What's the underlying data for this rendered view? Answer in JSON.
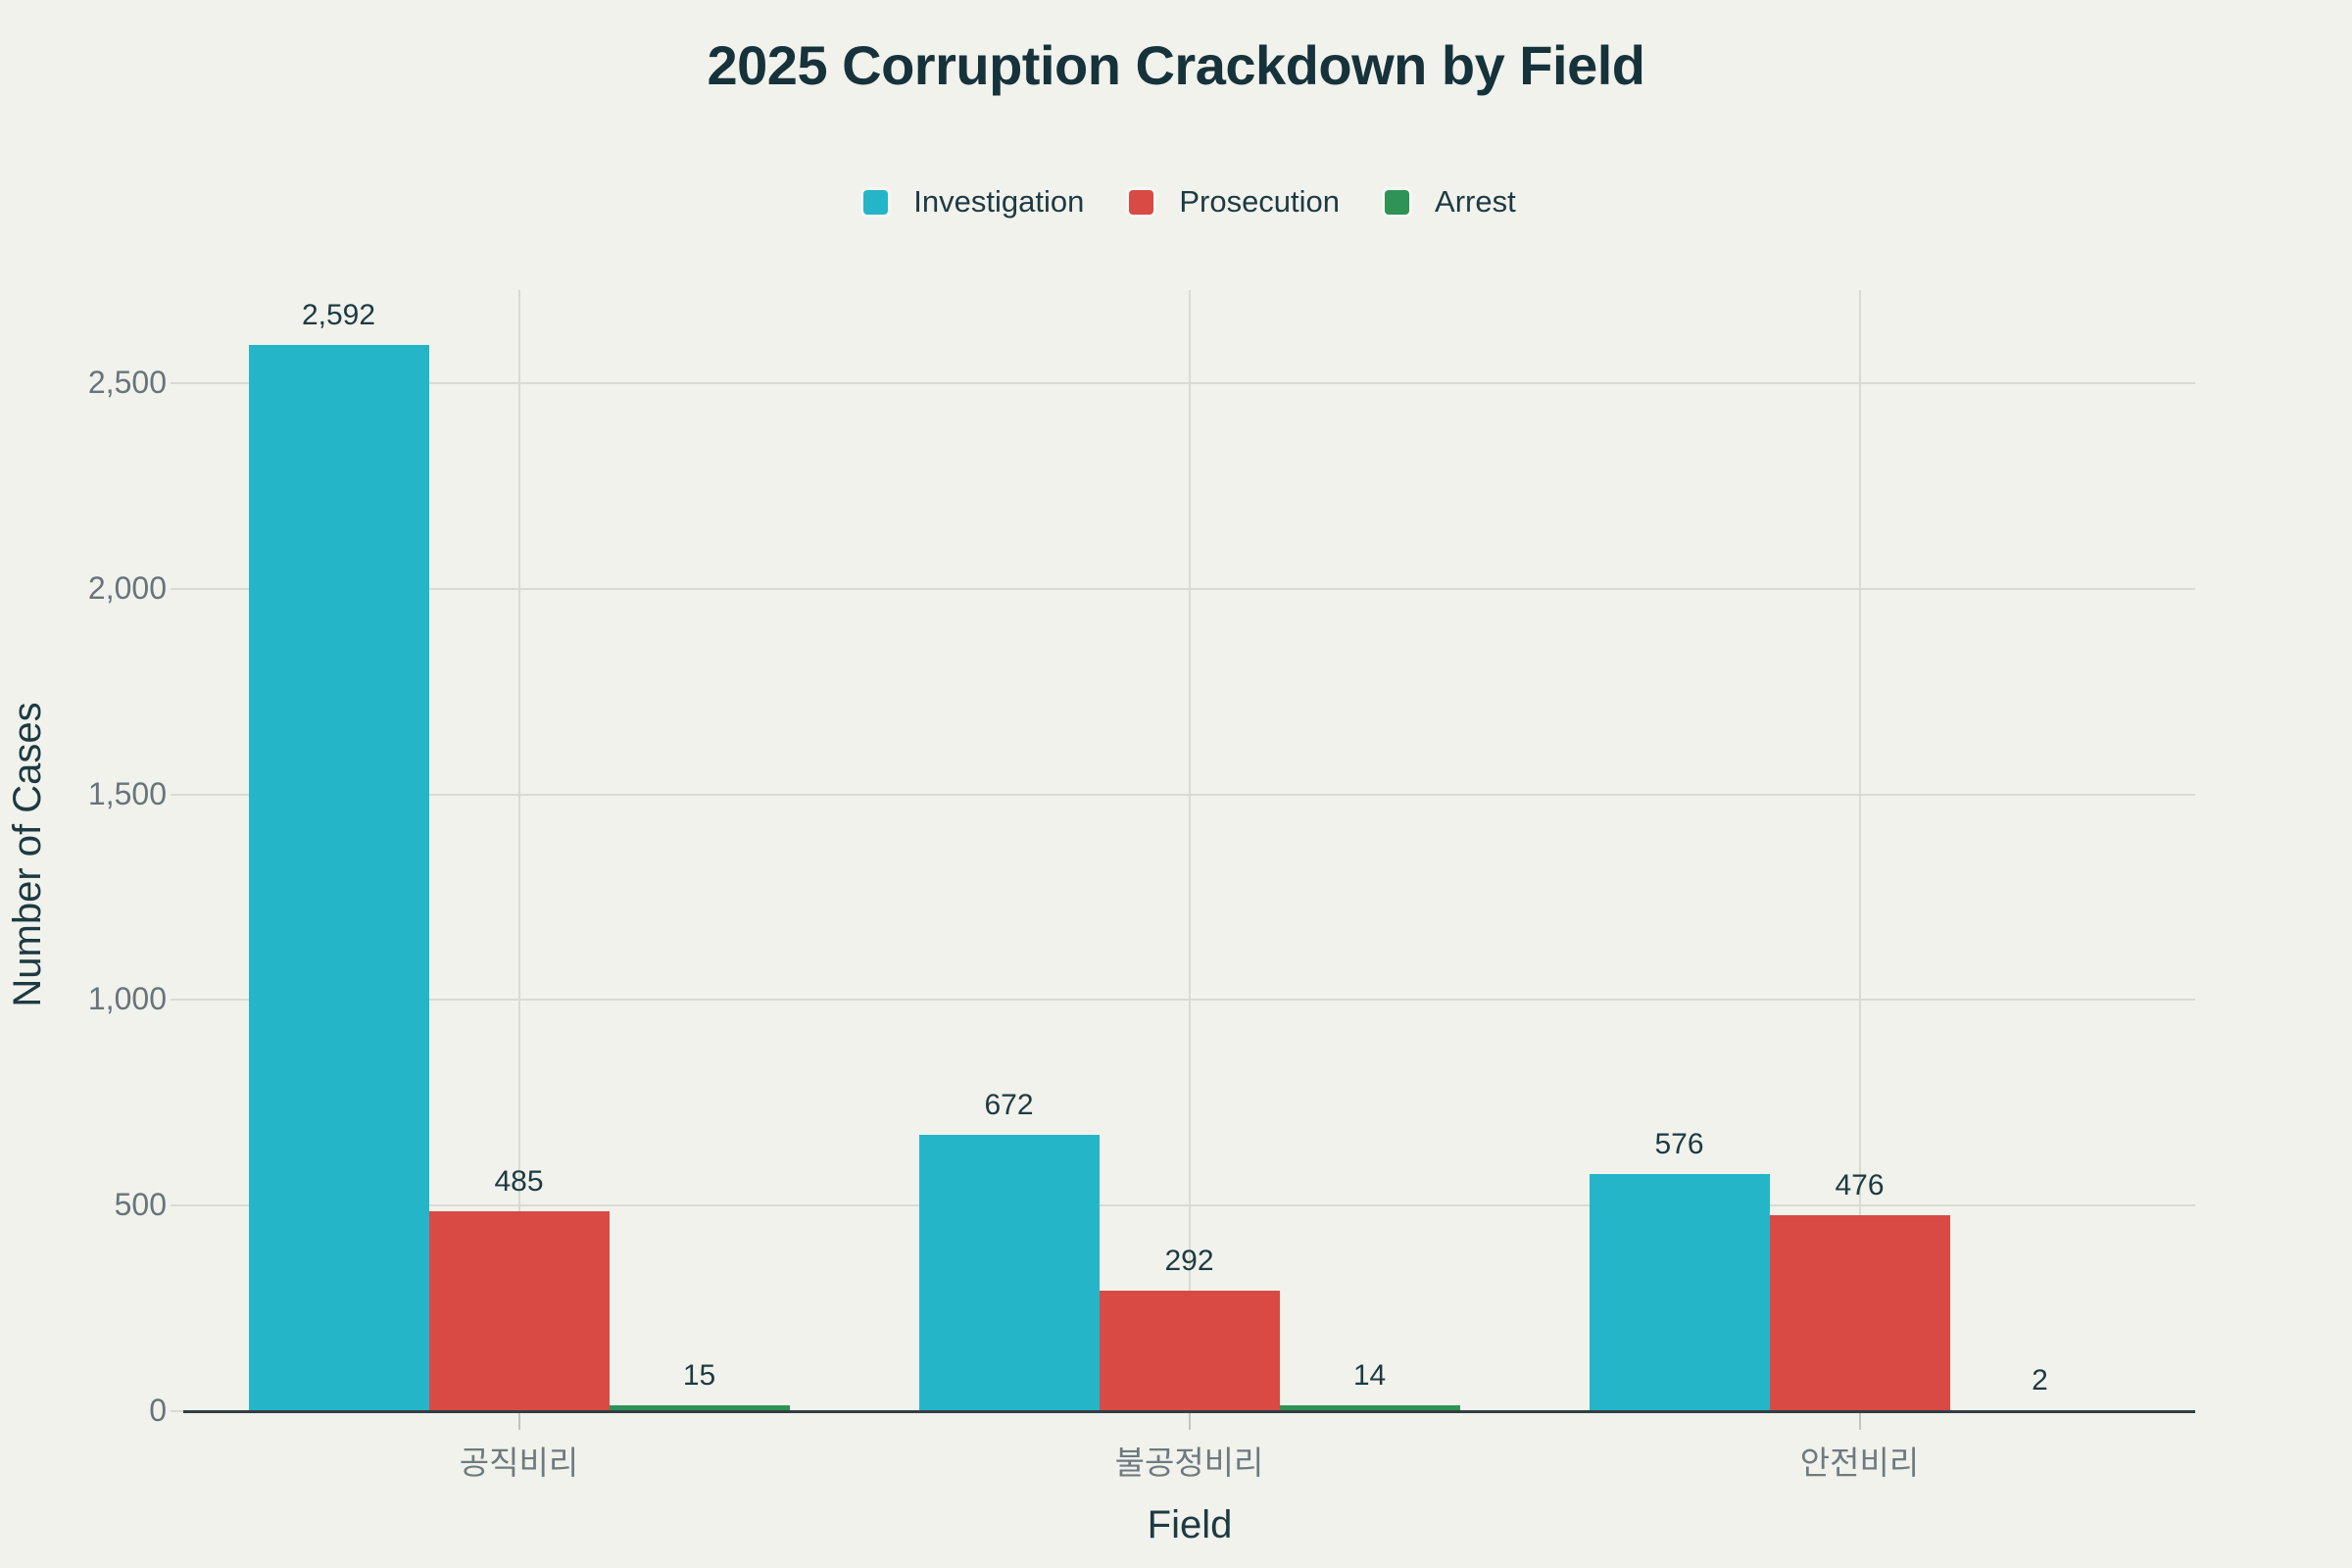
{
  "chart_data": {
    "type": "bar",
    "title": "2025 Corruption Crackdown by Field",
    "xlabel": "Field",
    "ylabel": "Number of Cases",
    "categories": [
      "공직비리",
      "불공정비리",
      "안전비리"
    ],
    "series": [
      {
        "name": "Investigation",
        "color": "#24b5c8",
        "values": [
          2592,
          672,
          576
        ]
      },
      {
        "name": "Prosecution",
        "color": "#d94a45",
        "values": [
          485,
          292,
          476
        ]
      },
      {
        "name": "Arrest",
        "color": "#2e9355",
        "values": [
          15,
          14,
          2
        ]
      }
    ],
    "value_labels": [
      [
        "2,592",
        "672",
        "576"
      ],
      [
        "485",
        "292",
        "476"
      ],
      [
        "15",
        "14",
        "2"
      ]
    ],
    "y_ticks": [
      "0",
      "500",
      "1,000",
      "1,500",
      "2,000",
      "2,500"
    ],
    "y_tick_values": [
      0,
      500,
      1000,
      1500,
      2000,
      2500
    ],
    "ylim": [
      0,
      2700
    ],
    "grid": true,
    "legend_position": "top"
  },
  "colors": {
    "background": "#f1f2ec",
    "title_text": "#16323b",
    "axis_title_text": "#1d3a42",
    "tick_text": "#68747b",
    "category_text": "#6e7a80",
    "value_text": "#1d3a42",
    "gridline": "#d9dbd3",
    "axis_line": "#313f44"
  }
}
